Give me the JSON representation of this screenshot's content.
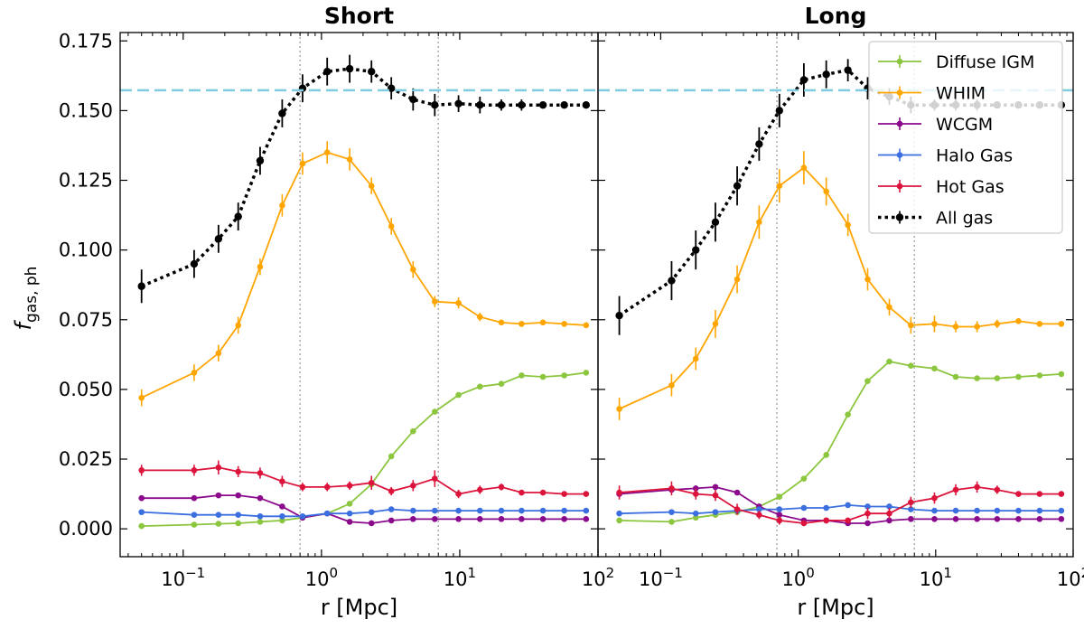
{
  "chart_data": [
    {
      "type": "line",
      "title": "Short",
      "xlabel": "r [Mpc]",
      "ylabel_main": "f",
      "ylabel_sub": "gas, ph",
      "xscale": "log",
      "xlim": [
        0.035,
        100
      ],
      "ylim": [
        -0.01,
        0.178
      ],
      "x_ticks": [
        {
          "value": 0.1,
          "base": "10",
          "exp": "−1"
        },
        {
          "value": 1,
          "base": "10",
          "exp": "0"
        },
        {
          "value": 10,
          "base": "10",
          "exp": "1"
        },
        {
          "value": 100,
          "base": "10",
          "exp": "2"
        }
      ],
      "y_ticks": [
        "0.000",
        "0.025",
        "0.050",
        "0.075",
        "0.100",
        "0.125",
        "0.150",
        "0.175"
      ],
      "reference_line": {
        "y": 0.1573,
        "color": "#7fcbe0",
        "style": "dashed"
      },
      "vertical_lines": [
        0.7,
        7.0
      ],
      "x": [
        0.05,
        0.12,
        0.18,
        0.25,
        0.36,
        0.52,
        0.73,
        1.1,
        1.6,
        2.3,
        3.2,
        4.6,
        6.6,
        9.8,
        14,
        20,
        28,
        40,
        57,
        82
      ],
      "series": [
        {
          "name": "Diffuse IGM",
          "color": "#8cc63f",
          "style": "solid",
          "y": [
            0.001,
            0.0015,
            0.0018,
            0.002,
            0.0025,
            0.003,
            0.004,
            0.0055,
            0.009,
            0.016,
            0.026,
            0.035,
            0.042,
            0.048,
            0.051,
            0.052,
            0.055,
            0.0545,
            0.055,
            0.056
          ],
          "err": [
            0.0006,
            0.0006,
            0.0006,
            0.0006,
            0.0006,
            0.0006,
            0.0006,
            0.0006,
            0.0006,
            0.0006,
            0.0006,
            0.0006,
            0.0006,
            0.0006,
            0.0006,
            0.0006,
            0.0006,
            0.0006,
            0.0006,
            0.0006
          ]
        },
        {
          "name": "WHIM",
          "color": "#ffa500",
          "style": "solid",
          "y": [
            0.047,
            0.056,
            0.063,
            0.073,
            0.094,
            0.116,
            0.131,
            0.135,
            0.1325,
            0.123,
            0.1085,
            0.093,
            0.0815,
            0.081,
            0.076,
            0.074,
            0.0735,
            0.074,
            0.0735,
            0.073
          ],
          "err": [
            0.003,
            0.003,
            0.003,
            0.003,
            0.003,
            0.004,
            0.004,
            0.004,
            0.004,
            0.003,
            0.003,
            0.003,
            0.002,
            0.002,
            0.0015,
            0.001,
            0.001,
            0.001,
            0.001,
            0.001
          ]
        },
        {
          "name": "WCGM",
          "color": "#8b0a8c",
          "style": "solid",
          "y": [
            0.011,
            0.011,
            0.012,
            0.012,
            0.011,
            0.008,
            0.004,
            0.0055,
            0.0025,
            0.002,
            0.003,
            0.0035,
            0.0035,
            0.0035,
            0.0035,
            0.0035,
            0.0035,
            0.0035,
            0.0035,
            0.0035
          ],
          "err": [
            0.0007,
            0.0007,
            0.0007,
            0.0007,
            0.0007,
            0.0007,
            0.0007,
            0.0007,
            0.0007,
            0.0007,
            0.0007,
            0.0007,
            0.0007,
            0.0007,
            0.0007,
            0.0007,
            0.0007,
            0.0007,
            0.0007,
            0.0007
          ]
        },
        {
          "name": "Halo Gas",
          "color": "#3b6fe0",
          "style": "solid",
          "y": [
            0.006,
            0.005,
            0.005,
            0.005,
            0.0045,
            0.0045,
            0.0045,
            0.0055,
            0.0055,
            0.006,
            0.007,
            0.0065,
            0.0065,
            0.0065,
            0.0065,
            0.0065,
            0.0065,
            0.0065,
            0.0065,
            0.0065
          ],
          "err": [
            0.0006,
            0.0006,
            0.0006,
            0.0006,
            0.0006,
            0.0006,
            0.0006,
            0.0006,
            0.0006,
            0.0006,
            0.0006,
            0.0006,
            0.0006,
            0.0006,
            0.0006,
            0.0006,
            0.0006,
            0.0006,
            0.0006,
            0.0006
          ]
        },
        {
          "name": "Hot Gas",
          "color": "#dc143c",
          "style": "solid",
          "y": [
            0.021,
            0.021,
            0.022,
            0.0205,
            0.02,
            0.017,
            0.015,
            0.015,
            0.0155,
            0.0165,
            0.0135,
            0.0155,
            0.018,
            0.0125,
            0.014,
            0.015,
            0.013,
            0.013,
            0.0125,
            0.0125
          ],
          "err": [
            0.002,
            0.002,
            0.0025,
            0.002,
            0.002,
            0.002,
            0.0015,
            0.0015,
            0.0015,
            0.0025,
            0.0015,
            0.002,
            0.003,
            0.0015,
            0.0015,
            0.0012,
            0.001,
            0.001,
            0.001,
            0.001
          ]
        },
        {
          "name": "All gas",
          "color": "#000000",
          "style": "dotted",
          "y": [
            0.087,
            0.095,
            0.104,
            0.112,
            0.132,
            0.149,
            0.158,
            0.164,
            0.165,
            0.164,
            0.158,
            0.154,
            0.152,
            0.1525,
            0.152,
            0.152,
            0.152,
            0.152,
            0.152,
            0.152
          ],
          "err": [
            0.006,
            0.005,
            0.005,
            0.005,
            0.005,
            0.005,
            0.005,
            0.005,
            0.005,
            0.004,
            0.004,
            0.004,
            0.004,
            0.003,
            0.003,
            0.002,
            0.002,
            0.001,
            0.001,
            0.001
          ]
        }
      ]
    },
    {
      "type": "line",
      "title": "Long",
      "xlabel": "r [Mpc]",
      "xscale": "log",
      "xlim": [
        0.035,
        100
      ],
      "ylim": [
        -0.01,
        0.178
      ],
      "x_ticks": [
        {
          "value": 0.1,
          "base": "10",
          "exp": "−1"
        },
        {
          "value": 1,
          "base": "10",
          "exp": "0"
        },
        {
          "value": 10,
          "base": "10",
          "exp": "1"
        },
        {
          "value": 100,
          "base": "10",
          "exp": "2"
        }
      ],
      "reference_line": {
        "y": 0.1573,
        "color": "#7fcbe0",
        "style": "dashed"
      },
      "vertical_lines": [
        0.7,
        7.0
      ],
      "x": [
        0.05,
        0.12,
        0.18,
        0.25,
        0.36,
        0.52,
        0.73,
        1.1,
        1.6,
        2.3,
        3.2,
        4.6,
        6.6,
        9.8,
        14,
        20,
        28,
        40,
        57,
        82
      ],
      "series": [
        {
          "name": "Diffuse IGM",
          "color": "#8cc63f",
          "style": "solid",
          "y": [
            0.003,
            0.0025,
            0.004,
            0.005,
            0.006,
            0.008,
            0.0115,
            0.018,
            0.0265,
            0.041,
            0.053,
            0.06,
            0.0585,
            0.0575,
            0.0545,
            0.054,
            0.054,
            0.0545,
            0.055,
            0.0555
          ],
          "err": [
            0.0006,
            0.0006,
            0.0006,
            0.0006,
            0.0006,
            0.0006,
            0.0006,
            0.0006,
            0.0006,
            0.0006,
            0.0006,
            0.0006,
            0.0006,
            0.0006,
            0.0006,
            0.0006,
            0.0006,
            0.0006,
            0.0006,
            0.0006
          ]
        },
        {
          "name": "WHIM",
          "color": "#ffa500",
          "style": "solid",
          "y": [
            0.043,
            0.0515,
            0.061,
            0.0735,
            0.0895,
            0.11,
            0.123,
            0.1295,
            0.121,
            0.109,
            0.0895,
            0.0795,
            0.073,
            0.0735,
            0.0725,
            0.0725,
            0.0735,
            0.0745,
            0.0735,
            0.0735
          ],
          "err": [
            0.004,
            0.004,
            0.004,
            0.005,
            0.005,
            0.006,
            0.006,
            0.006,
            0.005,
            0.004,
            0.004,
            0.003,
            0.003,
            0.003,
            0.002,
            0.002,
            0.0015,
            0.001,
            0.001,
            0.001
          ]
        },
        {
          "name": "WCGM",
          "color": "#8b0a8c",
          "style": "solid",
          "y": [
            0.0125,
            0.014,
            0.0145,
            0.015,
            0.013,
            0.008,
            0.005,
            0.003,
            0.003,
            0.002,
            0.002,
            0.003,
            0.0035,
            0.0035,
            0.0035,
            0.0035,
            0.0035,
            0.0035,
            0.0035,
            0.0035
          ],
          "err": [
            0.001,
            0.001,
            0.001,
            0.001,
            0.001,
            0.001,
            0.0007,
            0.0007,
            0.0007,
            0.0007,
            0.0007,
            0.0007,
            0.0007,
            0.0007,
            0.0007,
            0.0007,
            0.0007,
            0.0007,
            0.0007,
            0.0007
          ]
        },
        {
          "name": "Halo Gas",
          "color": "#3b6fe0",
          "style": "solid",
          "y": [
            0.0055,
            0.006,
            0.0055,
            0.006,
            0.0065,
            0.007,
            0.007,
            0.0075,
            0.0075,
            0.0085,
            0.008,
            0.008,
            0.007,
            0.0065,
            0.0065,
            0.0065,
            0.0065,
            0.0065,
            0.0065,
            0.0065
          ],
          "err": [
            0.0006,
            0.0006,
            0.0006,
            0.0006,
            0.0006,
            0.0006,
            0.0006,
            0.0006,
            0.0006,
            0.0006,
            0.0006,
            0.0006,
            0.0006,
            0.0006,
            0.0006,
            0.0006,
            0.0006,
            0.0006,
            0.0006,
            0.0006
          ]
        },
        {
          "name": "Hot Gas",
          "color": "#dc143c",
          "style": "solid",
          "y": [
            0.013,
            0.0145,
            0.0125,
            0.012,
            0.007,
            0.005,
            0.003,
            0.002,
            0.003,
            0.003,
            0.0055,
            0.0055,
            0.0095,
            0.011,
            0.014,
            0.015,
            0.014,
            0.0125,
            0.0125,
            0.0125
          ],
          "err": [
            0.0025,
            0.0025,
            0.002,
            0.002,
            0.002,
            0.0015,
            0.0015,
            0.001,
            0.001,
            0.001,
            0.002,
            0.002,
            0.002,
            0.002,
            0.002,
            0.002,
            0.0015,
            0.001,
            0.001,
            0.001
          ]
        },
        {
          "name": "All gas",
          "color": "#000000",
          "style": "dotted",
          "y": [
            0.0765,
            0.089,
            0.1,
            0.11,
            0.123,
            0.138,
            0.15,
            0.161,
            0.163,
            0.1645,
            0.158,
            0.155,
            0.152,
            0.152,
            0.152,
            0.152,
            0.152,
            0.152,
            0.152,
            0.152
          ],
          "err": [
            0.007,
            0.007,
            0.007,
            0.007,
            0.007,
            0.006,
            0.006,
            0.006,
            0.005,
            0.004,
            0.004,
            0.003,
            0.003,
            0.002,
            0.002,
            0.002,
            0.001,
            0.001,
            0.001,
            0.001
          ]
        }
      ]
    }
  ],
  "legend": {
    "position": "top-right",
    "items": [
      {
        "label": "Diffuse IGM",
        "color": "#8cc63f",
        "style": "solid"
      },
      {
        "label": "WHIM",
        "color": "#ffa500",
        "style": "solid"
      },
      {
        "label": "WCGM",
        "color": "#8b0a8c",
        "style": "solid"
      },
      {
        "label": "Halo Gas",
        "color": "#3b6fe0",
        "style": "solid"
      },
      {
        "label": "Hot Gas",
        "color": "#dc143c",
        "style": "solid"
      },
      {
        "label": "All gas",
        "color": "#000000",
        "style": "dotted"
      }
    ]
  }
}
